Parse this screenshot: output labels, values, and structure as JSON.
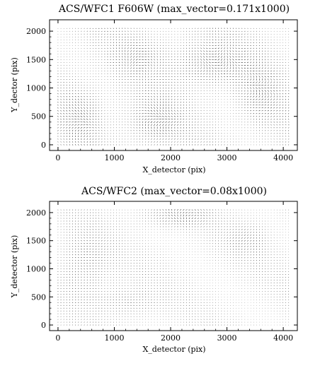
{
  "colors": {
    "background": "#ffffff",
    "ink": "#000000",
    "vector": "#1a1a1a"
  },
  "chart_data": [
    {
      "type": "quiver",
      "title": "ACS/WFC1 F606W (max_vector=0.171x1000)",
      "xlabel": "X_detector (pix)",
      "ylabel": "Y_dector (pix)",
      "xlim": [
        -150,
        4250
      ],
      "ylim": [
        -100,
        2200
      ],
      "xticks": [
        0,
        1000,
        2000,
        3000,
        4000
      ],
      "yticks": [
        0,
        500,
        1000,
        1500,
        2000
      ],
      "grid": false,
      "vector_field": {
        "x_range": [
          0,
          4096
        ],
        "y_range": [
          0,
          2048
        ],
        "columns": 80,
        "rows": 42,
        "max_vector": "0.171x1000",
        "pattern": "dense swirls, largest amplitude around x≈1600-2000, y≈200-700 and x≈2400-3400, y≈1200-1700"
      }
    },
    {
      "type": "quiver",
      "title": "ACS/WFC2 (max_vector=0.08x1000)",
      "xlabel": "X_detector (pix)",
      "ylabel": "Y_detector (pix)",
      "xlim": [
        -150,
        4250
      ],
      "ylim": [
        -100,
        2200
      ],
      "xticks": [
        0,
        1000,
        2000,
        3000,
        4000
      ],
      "yticks": [
        0,
        500,
        1000,
        1500,
        2000
      ],
      "grid": false,
      "vector_field": {
        "x_range": [
          0,
          4096
        ],
        "y_range": [
          0,
          2048
        ],
        "columns": 80,
        "rows": 42,
        "max_vector": "0.08x1000",
        "pattern": "weaker field, strongest near top edge x≈1800-2600 and left/lower regions"
      }
    }
  ]
}
